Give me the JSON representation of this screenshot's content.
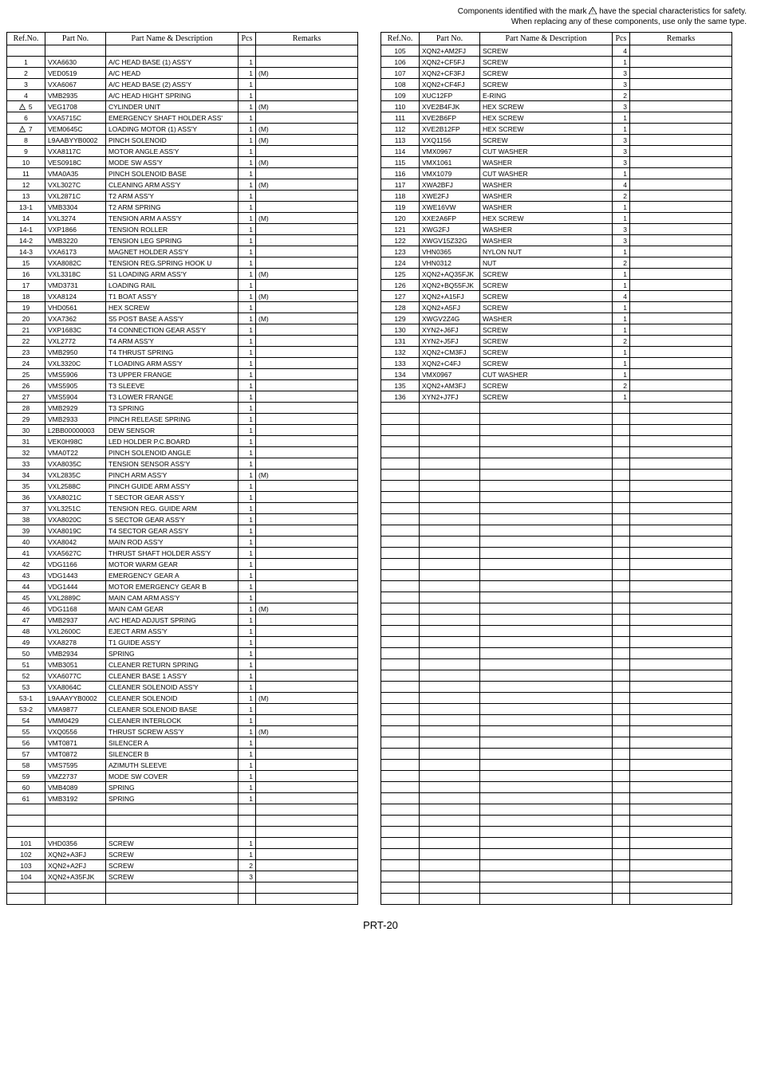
{
  "header": {
    "line1_pre": "Components identified with the mark ",
    "line1_post": " have the special characteristics for safety.",
    "line2": "When replacing any of these components, use only the same type."
  },
  "columns": {
    "ref": "Ref.No.",
    "part": "Part No.",
    "name": "Part Name & Description",
    "pcs": "Pcs",
    "rem": "Remarks"
  },
  "footer": "PRT-20",
  "delta_refs": [
    "5",
    "7"
  ],
  "left_rows": [
    {
      "ref": "",
      "part": "",
      "name": "",
      "pcs": "",
      "rem": ""
    },
    {
      "ref": "1",
      "part": "VXA6630",
      "name": "A/C HEAD BASE (1) ASS'Y",
      "pcs": "1",
      "rem": ""
    },
    {
      "ref": "2",
      "part": "VED0519",
      "name": "A/C HEAD",
      "pcs": "1",
      "rem": "(M)"
    },
    {
      "ref": "3",
      "part": "VXA6067",
      "name": "A/C HEAD BASE (2) ASS'Y",
      "pcs": "1",
      "rem": ""
    },
    {
      "ref": "4",
      "part": "VMB2935",
      "name": "A/C HEAD HIGHT SPRING",
      "pcs": "1",
      "rem": ""
    },
    {
      "ref": "5",
      "part": "VEG1708",
      "name": "CYLINDER UNIT",
      "pcs": "1",
      "rem": "(M)"
    },
    {
      "ref": "6",
      "part": "VXA5715C",
      "name": "EMERGENCY SHAFT HOLDER ASS'",
      "pcs": "1",
      "rem": ""
    },
    {
      "ref": "7",
      "part": "VEM0645C",
      "name": "LOADING MOTOR (1) ASS'Y",
      "pcs": "1",
      "rem": "(M)"
    },
    {
      "ref": "8",
      "part": "L9AABYYB0002",
      "name": "PINCH SOLENOID",
      "pcs": "1",
      "rem": "(M)"
    },
    {
      "ref": "9",
      "part": "VXA8117C",
      "name": "MOTOR ANGLE ASS'Y",
      "pcs": "1",
      "rem": ""
    },
    {
      "ref": "10",
      "part": "VES0918C",
      "name": "MODE SW ASS'Y",
      "pcs": "1",
      "rem": "(M)"
    },
    {
      "ref": "11",
      "part": "VMA0A35",
      "name": "PINCH SOLENOID BASE",
      "pcs": "1",
      "rem": ""
    },
    {
      "ref": "12",
      "part": "VXL3027C",
      "name": "CLEANING ARM ASS'Y",
      "pcs": "1",
      "rem": "(M)"
    },
    {
      "ref": "13",
      "part": "VXL2871C",
      "name": "T2 ARM ASS'Y",
      "pcs": "1",
      "rem": ""
    },
    {
      "ref": "13-1",
      "part": "VMB3304",
      "name": "T2 ARM SPRING",
      "pcs": "1",
      "rem": ""
    },
    {
      "ref": "14",
      "part": "VXL3274",
      "name": "TENSION ARM A ASS'Y",
      "pcs": "1",
      "rem": "(M)"
    },
    {
      "ref": "14-1",
      "part": "VXP1866",
      "name": "TENSION ROLLER",
      "pcs": "1",
      "rem": ""
    },
    {
      "ref": "14-2",
      "part": "VMB3220",
      "name": "TENSION LEG SPRING",
      "pcs": "1",
      "rem": ""
    },
    {
      "ref": "14-3",
      "part": "VXA6173",
      "name": "MAGNET HOLDER ASS'Y",
      "pcs": "1",
      "rem": ""
    },
    {
      "ref": "15",
      "part": "VXA8082C",
      "name": "TENSION REG.SPRING HOOK U",
      "pcs": "1",
      "rem": ""
    },
    {
      "ref": "16",
      "part": "VXL3318C",
      "name": "S1 LOADING ARM ASS'Y",
      "pcs": "1",
      "rem": "(M)"
    },
    {
      "ref": "17",
      "part": "VMD3731",
      "name": "LOADING RAIL",
      "pcs": "1",
      "rem": ""
    },
    {
      "ref": "18",
      "part": "VXA8124",
      "name": "T1 BOAT ASS'Y",
      "pcs": "1",
      "rem": "(M)"
    },
    {
      "ref": "19",
      "part": "VHD0561",
      "name": "HEX SCREW",
      "pcs": "1",
      "rem": ""
    },
    {
      "ref": "20",
      "part": "VXA7362",
      "name": "S5 POST BASE A ASS'Y",
      "pcs": "1",
      "rem": "(M)"
    },
    {
      "ref": "21",
      "part": "VXP1683C",
      "name": "T4 CONNECTION GEAR ASS'Y",
      "pcs": "1",
      "rem": ""
    },
    {
      "ref": "22",
      "part": "VXL2772",
      "name": "T4 ARM ASS'Y",
      "pcs": "1",
      "rem": ""
    },
    {
      "ref": "23",
      "part": "VMB2950",
      "name": "T4 THRUST SPRING",
      "pcs": "1",
      "rem": ""
    },
    {
      "ref": "24",
      "part": "VXL3320C",
      "name": "T LOADING ARM ASS'Y",
      "pcs": "1",
      "rem": ""
    },
    {
      "ref": "25",
      "part": "VMS5906",
      "name": "T3 UPPER FRANGE",
      "pcs": "1",
      "rem": ""
    },
    {
      "ref": "26",
      "part": "VMS5905",
      "name": "T3 SLEEVE",
      "pcs": "1",
      "rem": ""
    },
    {
      "ref": "27",
      "part": "VMS5904",
      "name": "T3 LOWER FRANGE",
      "pcs": "1",
      "rem": ""
    },
    {
      "ref": "28",
      "part": "VMB2929",
      "name": "T3 SPRING",
      "pcs": "1",
      "rem": ""
    },
    {
      "ref": "29",
      "part": "VMB2933",
      "name": "PINCH RELEASE SPRING",
      "pcs": "1",
      "rem": ""
    },
    {
      "ref": "30",
      "part": "L2BB00000003",
      "name": "DEW SENSOR",
      "pcs": "1",
      "rem": ""
    },
    {
      "ref": "31",
      "part": "VEK0H98C",
      "name": "LED HOLDER P.C.BOARD",
      "pcs": "1",
      "rem": ""
    },
    {
      "ref": "32",
      "part": "VMA0T22",
      "name": "PINCH SOLENOID ANGLE",
      "pcs": "1",
      "rem": ""
    },
    {
      "ref": "33",
      "part": "VXA8035C",
      "name": "TENSION SENSOR ASS'Y",
      "pcs": "1",
      "rem": ""
    },
    {
      "ref": "34",
      "part": "VXL2835C",
      "name": "PINCH ARM ASS'Y",
      "pcs": "1",
      "rem": "(M)"
    },
    {
      "ref": "35",
      "part": "VXL2588C",
      "name": "PINCH GUIDE ARM ASS'Y",
      "pcs": "1",
      "rem": ""
    },
    {
      "ref": "36",
      "part": "VXA8021C",
      "name": "T SECTOR GEAR ASS'Y",
      "pcs": "1",
      "rem": ""
    },
    {
      "ref": "37",
      "part": "VXL3251C",
      "name": "TENSION REG. GUIDE ARM",
      "pcs": "1",
      "rem": ""
    },
    {
      "ref": "38",
      "part": "VXA8020C",
      "name": "S SECTOR GEAR ASS'Y",
      "pcs": "1",
      "rem": ""
    },
    {
      "ref": "39",
      "part": "VXA8019C",
      "name": "T4 SECTOR GEAR ASS'Y",
      "pcs": "1",
      "rem": ""
    },
    {
      "ref": "40",
      "part": "VXA8042",
      "name": "MAIN ROD ASS'Y",
      "pcs": "1",
      "rem": ""
    },
    {
      "ref": "41",
      "part": "VXA5627C",
      "name": "THRUST SHAFT HOLDER ASS'Y",
      "pcs": "1",
      "rem": ""
    },
    {
      "ref": "42",
      "part": "VDG1166",
      "name": "MOTOR WARM GEAR",
      "pcs": "1",
      "rem": ""
    },
    {
      "ref": "43",
      "part": "VDG1443",
      "name": "EMERGENCY GEAR A",
      "pcs": "1",
      "rem": ""
    },
    {
      "ref": "44",
      "part": "VDG1444",
      "name": "MOTOR EMERGENCY GEAR B",
      "pcs": "1",
      "rem": ""
    },
    {
      "ref": "45",
      "part": "VXL2889C",
      "name": "MAIN CAM ARM ASS'Y",
      "pcs": "1",
      "rem": ""
    },
    {
      "ref": "46",
      "part": "VDG1168",
      "name": "MAIN CAM GEAR",
      "pcs": "1",
      "rem": "(M)"
    },
    {
      "ref": "47",
      "part": "VMB2937",
      "name": "A/C HEAD ADJUST SPRING",
      "pcs": "1",
      "rem": ""
    },
    {
      "ref": "48",
      "part": "VXL2600C",
      "name": "EJECT ARM ASS'Y",
      "pcs": "1",
      "rem": ""
    },
    {
      "ref": "49",
      "part": "VXA8278",
      "name": "T1 GUIDE ASS'Y",
      "pcs": "1",
      "rem": ""
    },
    {
      "ref": "50",
      "part": "VMB2934",
      "name": "SPRING",
      "pcs": "1",
      "rem": ""
    },
    {
      "ref": "51",
      "part": "VMB3051",
      "name": "CLEANER RETURN SPRING",
      "pcs": "1",
      "rem": ""
    },
    {
      "ref": "52",
      "part": "VXA6077C",
      "name": "CLEANER BASE 1 ASS'Y",
      "pcs": "1",
      "rem": ""
    },
    {
      "ref": "53",
      "part": "VXA8064C",
      "name": "CLEANER SOLENOID ASS'Y",
      "pcs": "1",
      "rem": ""
    },
    {
      "ref": "53-1",
      "part": "L9AAAYYB0002",
      "name": "CLEANER SOLENOID",
      "pcs": "1",
      "rem": "(M)"
    },
    {
      "ref": "53-2",
      "part": "VMA9877",
      "name": "CLEANER SOLENOID BASE",
      "pcs": "1",
      "rem": ""
    },
    {
      "ref": "54",
      "part": "VMM0429",
      "name": "CLEANER INTERLOCK",
      "pcs": "1",
      "rem": ""
    },
    {
      "ref": "55",
      "part": "VXQ0556",
      "name": "THRUST SCREW ASS'Y",
      "pcs": "1",
      "rem": "(M)"
    },
    {
      "ref": "56",
      "part": "VMT0871",
      "name": "SILENCER A",
      "pcs": "1",
      "rem": ""
    },
    {
      "ref": "57",
      "part": "VMT0872",
      "name": "SILENCER B",
      "pcs": "1",
      "rem": ""
    },
    {
      "ref": "58",
      "part": "VMS7595",
      "name": "AZIMUTH SLEEVE",
      "pcs": "1",
      "rem": ""
    },
    {
      "ref": "59",
      "part": "VMZ2737",
      "name": "MODE SW COVER",
      "pcs": "1",
      "rem": ""
    },
    {
      "ref": "60",
      "part": "VMB4089",
      "name": "SPRING",
      "pcs": "1",
      "rem": ""
    },
    {
      "ref": "61",
      "part": "VMB3192",
      "name": "SPRING",
      "pcs": "1",
      "rem": ""
    },
    {
      "ref": "",
      "part": "",
      "name": "",
      "pcs": "",
      "rem": ""
    },
    {
      "ref": "",
      "part": "",
      "name": "",
      "pcs": "",
      "rem": ""
    },
    {
      "ref": "",
      "part": "",
      "name": "",
      "pcs": "",
      "rem": ""
    },
    {
      "ref": "101",
      "part": "VHD0356",
      "name": "SCREW",
      "pcs": "1",
      "rem": ""
    },
    {
      "ref": "102",
      "part": "XQN2+A3FJ",
      "name": "SCREW",
      "pcs": "1",
      "rem": ""
    },
    {
      "ref": "103",
      "part": "XQN2+A2FJ",
      "name": "SCREW",
      "pcs": "2",
      "rem": ""
    },
    {
      "ref": "104",
      "part": "XQN2+A35FJK",
      "name": "SCREW",
      "pcs": "3",
      "rem": ""
    },
    {
      "ref": "",
      "part": "",
      "name": "",
      "pcs": "",
      "rem": ""
    },
    {
      "ref": "",
      "part": "",
      "name": "",
      "pcs": "",
      "rem": ""
    }
  ],
  "right_rows": [
    {
      "ref": "105",
      "part": "XQN2+AM2FJ",
      "name": "SCREW",
      "pcs": "4",
      "rem": ""
    },
    {
      "ref": "106",
      "part": "XQN2+CF5FJ",
      "name": "SCREW",
      "pcs": "1",
      "rem": ""
    },
    {
      "ref": "107",
      "part": "XQN2+CF3FJ",
      "name": "SCREW",
      "pcs": "3",
      "rem": ""
    },
    {
      "ref": "108",
      "part": "XQN2+CF4FJ",
      "name": "SCREW",
      "pcs": "3",
      "rem": ""
    },
    {
      "ref": "109",
      "part": "XUC12FP",
      "name": "E-RING",
      "pcs": "2",
      "rem": ""
    },
    {
      "ref": "110",
      "part": "XVE2B4FJK",
      "name": "HEX SCREW",
      "pcs": "3",
      "rem": ""
    },
    {
      "ref": "111",
      "part": "XVE2B6FP",
      "name": "HEX SCREW",
      "pcs": "1",
      "rem": ""
    },
    {
      "ref": "112",
      "part": "XVE2B12FP",
      "name": "HEX SCREW",
      "pcs": "1",
      "rem": ""
    },
    {
      "ref": "113",
      "part": "VXQ1156",
      "name": "SCREW",
      "pcs": "3",
      "rem": ""
    },
    {
      "ref": "114",
      "part": "VMX0967",
      "name": "CUT WASHER",
      "pcs": "3",
      "rem": ""
    },
    {
      "ref": "115",
      "part": "VMX1061",
      "name": "WASHER",
      "pcs": "3",
      "rem": ""
    },
    {
      "ref": "116",
      "part": "VMX1079",
      "name": "CUT WASHER",
      "pcs": "1",
      "rem": ""
    },
    {
      "ref": "117",
      "part": "XWA2BFJ",
      "name": "WASHER",
      "pcs": "4",
      "rem": ""
    },
    {
      "ref": "118",
      "part": "XWE2FJ",
      "name": "WASHER",
      "pcs": "2",
      "rem": ""
    },
    {
      "ref": "119",
      "part": "XWE16VW",
      "name": "WASHER",
      "pcs": "1",
      "rem": ""
    },
    {
      "ref": "120",
      "part": "XXE2A6FP",
      "name": "HEX SCREW",
      "pcs": "1",
      "rem": ""
    },
    {
      "ref": "121",
      "part": "XWG2FJ",
      "name": "WASHER",
      "pcs": "3",
      "rem": ""
    },
    {
      "ref": "122",
      "part": "XWGV15Z32G",
      "name": "WASHER",
      "pcs": "3",
      "rem": ""
    },
    {
      "ref": "123",
      "part": "VHN0365",
      "name": "NYLON NUT",
      "pcs": "1",
      "rem": ""
    },
    {
      "ref": "124",
      "part": "VHN0312",
      "name": "NUT",
      "pcs": "2",
      "rem": ""
    },
    {
      "ref": "125",
      "part": "XQN2+AQ35FJK",
      "name": "SCREW",
      "pcs": "1",
      "rem": ""
    },
    {
      "ref": "126",
      "part": "XQN2+BQ55FJK",
      "name": "SCREW",
      "pcs": "1",
      "rem": ""
    },
    {
      "ref": "127",
      "part": "XQN2+A15FJ",
      "name": "SCREW",
      "pcs": "4",
      "rem": ""
    },
    {
      "ref": "128",
      "part": "XQN2+A5FJ",
      "name": "SCREW",
      "pcs": "1",
      "rem": ""
    },
    {
      "ref": "129",
      "part": "XWGV2Z4G",
      "name": "WASHER",
      "pcs": "1",
      "rem": ""
    },
    {
      "ref": "130",
      "part": "XYN2+J6FJ",
      "name": "SCREW",
      "pcs": "1",
      "rem": ""
    },
    {
      "ref": "131",
      "part": "XYN2+J5FJ",
      "name": "SCREW",
      "pcs": "2",
      "rem": ""
    },
    {
      "ref": "132",
      "part": "XQN2+CM3FJ",
      "name": "SCREW",
      "pcs": "1",
      "rem": ""
    },
    {
      "ref": "133",
      "part": "XQN2+C4FJ",
      "name": "SCREW",
      "pcs": "1",
      "rem": ""
    },
    {
      "ref": "134",
      "part": "VMX0967",
      "name": "CUT WASHER",
      "pcs": "1",
      "rem": ""
    },
    {
      "ref": "135",
      "part": "XQN2+AM3FJ",
      "name": "SCREW",
      "pcs": "2",
      "rem": ""
    },
    {
      "ref": "136",
      "part": "XYN2+J7FJ",
      "name": "SCREW",
      "pcs": "1",
      "rem": ""
    },
    {
      "ref": "",
      "part": "",
      "name": "",
      "pcs": "",
      "rem": ""
    },
    {
      "ref": "",
      "part": "",
      "name": "",
      "pcs": "",
      "rem": ""
    },
    {
      "ref": "",
      "part": "",
      "name": "",
      "pcs": "",
      "rem": ""
    },
    {
      "ref": "",
      "part": "",
      "name": "",
      "pcs": "",
      "rem": ""
    },
    {
      "ref": "",
      "part": "",
      "name": "",
      "pcs": "",
      "rem": ""
    },
    {
      "ref": "",
      "part": "",
      "name": "",
      "pcs": "",
      "rem": ""
    },
    {
      "ref": "",
      "part": "",
      "name": "",
      "pcs": "",
      "rem": ""
    },
    {
      "ref": "",
      "part": "",
      "name": "",
      "pcs": "",
      "rem": ""
    },
    {
      "ref": "",
      "part": "",
      "name": "",
      "pcs": "",
      "rem": ""
    },
    {
      "ref": "",
      "part": "",
      "name": "",
      "pcs": "",
      "rem": ""
    },
    {
      "ref": "",
      "part": "",
      "name": "",
      "pcs": "",
      "rem": ""
    },
    {
      "ref": "",
      "part": "",
      "name": "",
      "pcs": "",
      "rem": ""
    },
    {
      "ref": "",
      "part": "",
      "name": "",
      "pcs": "",
      "rem": ""
    },
    {
      "ref": "",
      "part": "",
      "name": "",
      "pcs": "",
      "rem": ""
    },
    {
      "ref": "",
      "part": "",
      "name": "",
      "pcs": "",
      "rem": ""
    },
    {
      "ref": "",
      "part": "",
      "name": "",
      "pcs": "",
      "rem": ""
    },
    {
      "ref": "",
      "part": "",
      "name": "",
      "pcs": "",
      "rem": ""
    },
    {
      "ref": "",
      "part": "",
      "name": "",
      "pcs": "",
      "rem": ""
    },
    {
      "ref": "",
      "part": "",
      "name": "",
      "pcs": "",
      "rem": ""
    },
    {
      "ref": "",
      "part": "",
      "name": "",
      "pcs": "",
      "rem": ""
    },
    {
      "ref": "",
      "part": "",
      "name": "",
      "pcs": "",
      "rem": ""
    },
    {
      "ref": "",
      "part": "",
      "name": "",
      "pcs": "",
      "rem": ""
    },
    {
      "ref": "",
      "part": "",
      "name": "",
      "pcs": "",
      "rem": ""
    },
    {
      "ref": "",
      "part": "",
      "name": "",
      "pcs": "",
      "rem": ""
    },
    {
      "ref": "",
      "part": "",
      "name": "",
      "pcs": "",
      "rem": ""
    },
    {
      "ref": "",
      "part": "",
      "name": "",
      "pcs": "",
      "rem": ""
    },
    {
      "ref": "",
      "part": "",
      "name": "",
      "pcs": "",
      "rem": ""
    },
    {
      "ref": "",
      "part": "",
      "name": "",
      "pcs": "",
      "rem": ""
    },
    {
      "ref": "",
      "part": "",
      "name": "",
      "pcs": "",
      "rem": ""
    },
    {
      "ref": "",
      "part": "",
      "name": "",
      "pcs": "",
      "rem": ""
    },
    {
      "ref": "",
      "part": "",
      "name": "",
      "pcs": "",
      "rem": ""
    },
    {
      "ref": "",
      "part": "",
      "name": "",
      "pcs": "",
      "rem": ""
    },
    {
      "ref": "",
      "part": "",
      "name": "",
      "pcs": "",
      "rem": ""
    },
    {
      "ref": "",
      "part": "",
      "name": "",
      "pcs": "",
      "rem": ""
    },
    {
      "ref": "",
      "part": "",
      "name": "",
      "pcs": "",
      "rem": ""
    },
    {
      "ref": "",
      "part": "",
      "name": "",
      "pcs": "",
      "rem": ""
    },
    {
      "ref": "",
      "part": "",
      "name": "",
      "pcs": "",
      "rem": ""
    },
    {
      "ref": "",
      "part": "",
      "name": "",
      "pcs": "",
      "rem": ""
    },
    {
      "ref": "",
      "part": "",
      "name": "",
      "pcs": "",
      "rem": ""
    },
    {
      "ref": "",
      "part": "",
      "name": "",
      "pcs": "",
      "rem": ""
    },
    {
      "ref": "",
      "part": "",
      "name": "",
      "pcs": "",
      "rem": ""
    },
    {
      "ref": "",
      "part": "",
      "name": "",
      "pcs": "",
      "rem": ""
    },
    {
      "ref": "",
      "part": "",
      "name": "",
      "pcs": "",
      "rem": ""
    },
    {
      "ref": "",
      "part": "",
      "name": "",
      "pcs": "",
      "rem": ""
    },
    {
      "ref": "",
      "part": "",
      "name": "",
      "pcs": "",
      "rem": ""
    }
  ]
}
